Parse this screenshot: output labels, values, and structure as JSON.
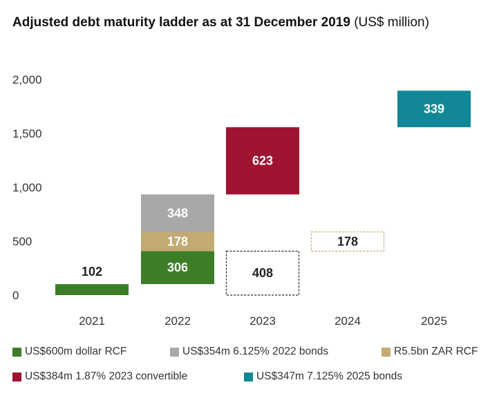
{
  "title": {
    "main": "Adjusted debt maturity ladder as at 31 December 2019",
    "unit": "(US$ million)"
  },
  "chart_data": {
    "type": "bar",
    "subtype": "floating waterfall / stacked",
    "categories": [
      "2021",
      "2022",
      "2023",
      "2024",
      "2025"
    ],
    "y_ticks": [
      "0",
      "500",
      "1,000",
      "1,500",
      "2,000"
    ],
    "ylim": [
      0,
      2000
    ],
    "grid": false,
    "legend_placement": "bottom",
    "series": [
      {
        "name": "US$600m dollar RCF",
        "color": "#3e7d28"
      },
      {
        "name": "US$354m 6.125% 2022 bonds",
        "color": "#a8a8a8"
      },
      {
        "name": "R5.5bn ZAR RCF",
        "color": "#c2aa72"
      },
      {
        "name": "US$384m 1.87% 2023 convertible",
        "color": "#9d1330"
      },
      {
        "name": "US$347m 7.125% 2025 bonds",
        "color": "#128896"
      }
    ],
    "bars": [
      {
        "category": "2021",
        "series": "US$600m dollar RCF",
        "label": "102",
        "base": 0,
        "value": 102,
        "label_position": "above",
        "dashed": false
      },
      {
        "category": "2022",
        "series": "US$600m dollar RCF",
        "label": "306",
        "base": 102,
        "value": 306,
        "label_position": "inside",
        "dashed": false
      },
      {
        "category": "2022",
        "series": "R5.5bn ZAR RCF",
        "label": "178",
        "base": 408,
        "value": 178,
        "label_position": "inside",
        "dashed": false
      },
      {
        "category": "2022",
        "series": "US$354m 6.125% 2022 bonds",
        "label": "348",
        "base": 586,
        "value": 348,
        "label_position": "inside",
        "dashed": false
      },
      {
        "category": "2023",
        "series": "",
        "label": "408",
        "base": 0,
        "value": 408,
        "label_position": "inside",
        "dashed": true,
        "outline": "#222222"
      },
      {
        "category": "2023",
        "series": "US$384m 1.87% 2023 convertible",
        "label": "623",
        "base": 934,
        "value": 623,
        "label_position": "inside",
        "dashed": false
      },
      {
        "category": "2024",
        "series": "",
        "label": "178",
        "base": 408,
        "value": 178,
        "label_position": "inside",
        "dashed": true,
        "outline": "#c2aa72"
      },
      {
        "category": "2025",
        "series": "US$347m 7.125% 2025 bonds",
        "label": "339",
        "base": 1557,
        "value": 339,
        "label_position": "inside",
        "dashed": false
      }
    ]
  },
  "legend": {
    "items": [
      {
        "label": "US$600m dollar RCF",
        "color": "#3e7d28"
      },
      {
        "label": "US$354m 6.125% 2022 bonds",
        "color": "#a8a8a8"
      },
      {
        "label": "R5.5bn ZAR RCF",
        "color": "#c2aa72"
      },
      {
        "label": "US$384m 1.87% 2023 convertible",
        "color": "#9d1330"
      },
      {
        "label": "US$347m 7.125% 2025 bonds",
        "color": "#128896"
      }
    ]
  }
}
